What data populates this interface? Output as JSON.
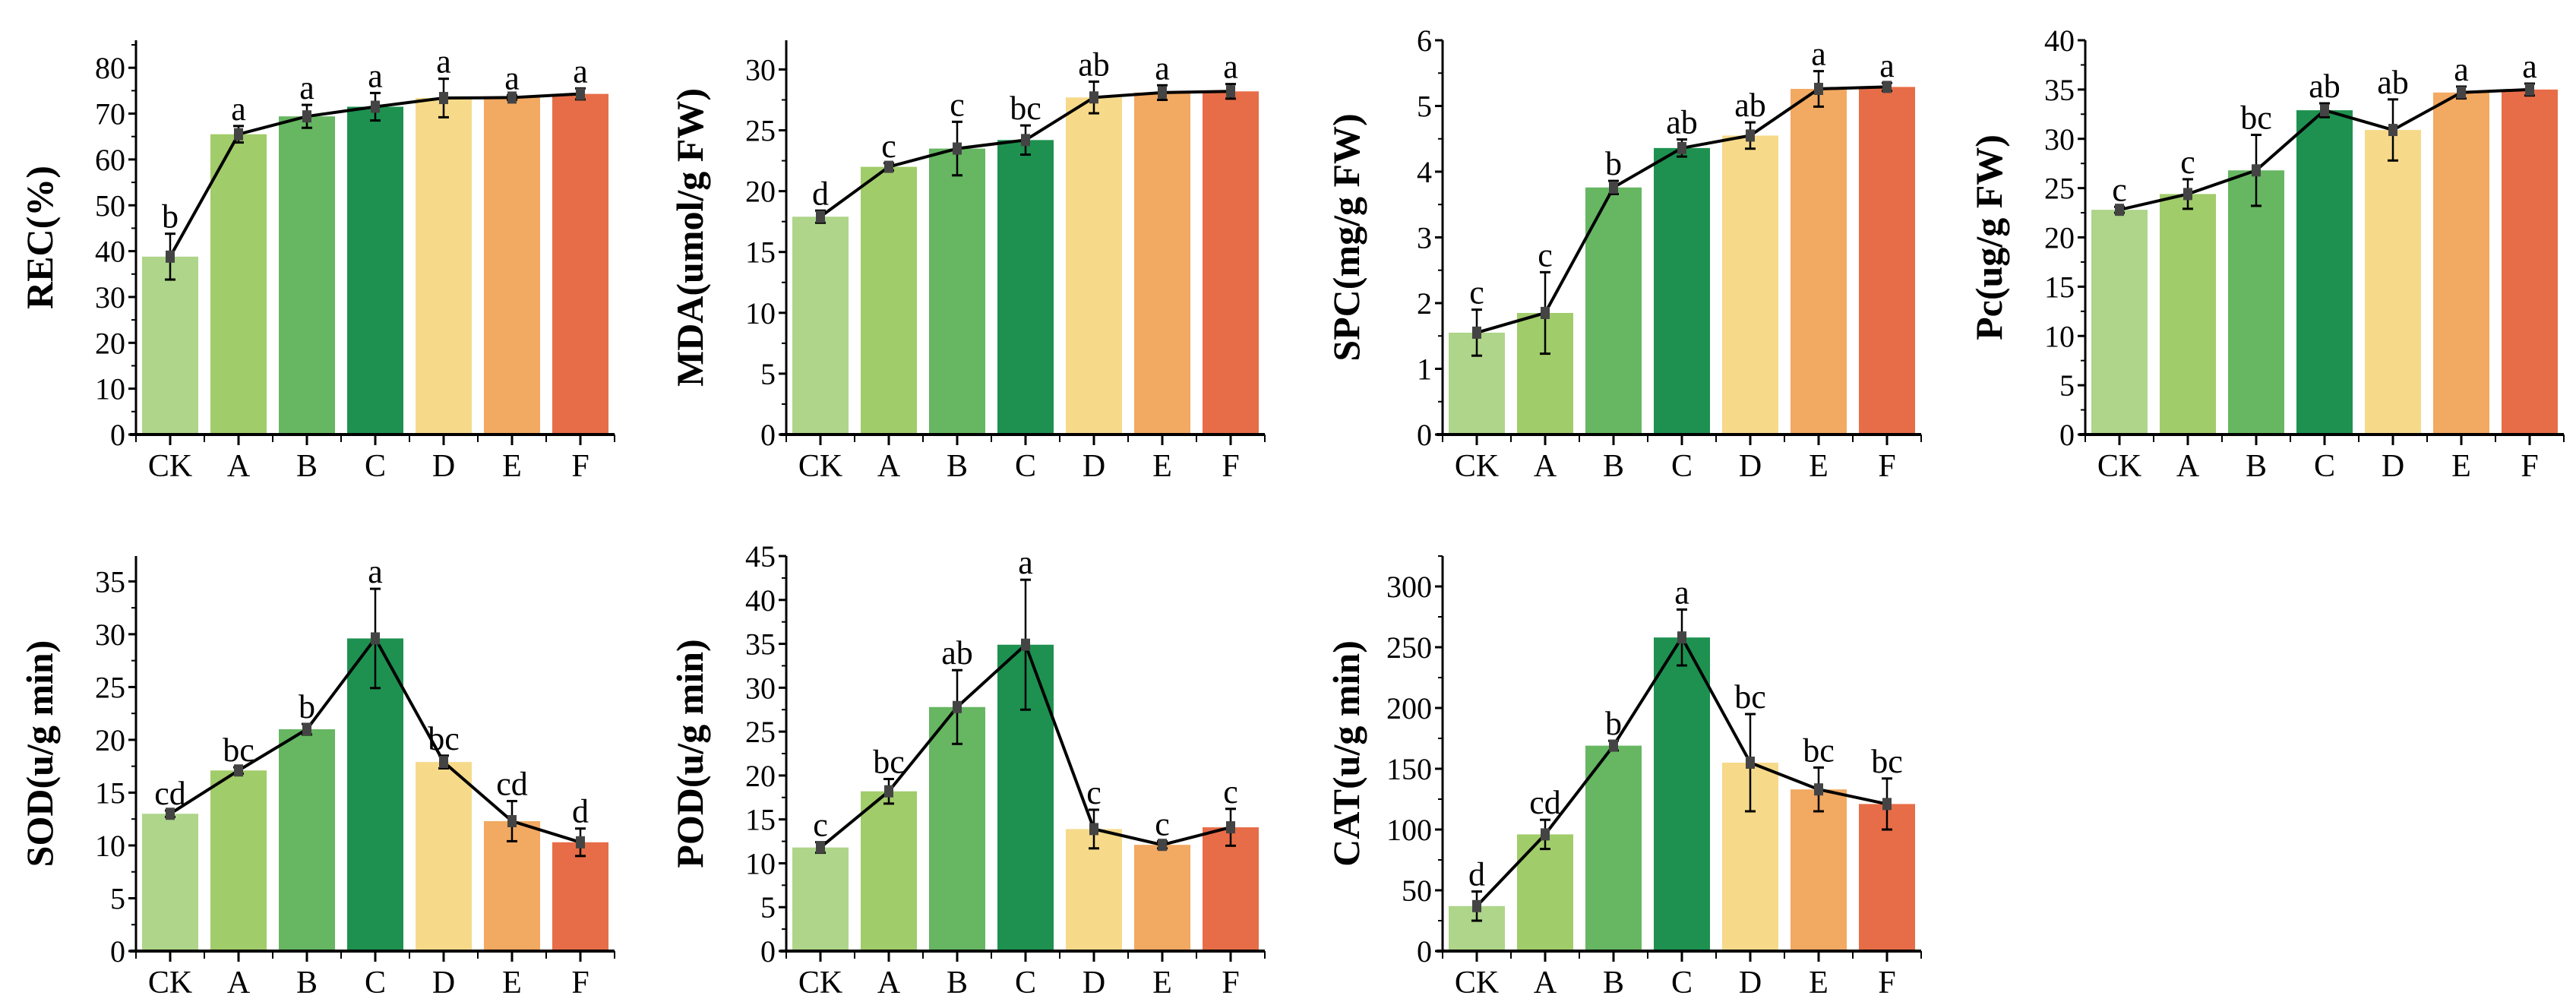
{
  "chart_data": [
    {
      "type": "bar",
      "ylabel": "REC(%)",
      "categories": [
        "CK",
        "A",
        "B",
        "C",
        "D",
        "E",
        "F"
      ],
      "values": [
        38.8,
        65.5,
        69.4,
        71.5,
        73.4,
        73.5,
        74.3
      ],
      "errors": [
        5.0,
        1.8,
        2.5,
        3.0,
        4.2,
        0.5,
        1.2
      ],
      "letters": [
        "b",
        "a",
        "a",
        "a",
        "a",
        "a",
        "a"
      ],
      "ylim": [
        0,
        86
      ],
      "yticks": [
        0,
        10,
        20,
        30,
        40,
        50,
        60,
        70,
        80
      ]
    },
    {
      "type": "bar",
      "ylabel": "MDA(umol/g FW)",
      "categories": [
        "CK",
        "A",
        "B",
        "C",
        "D",
        "E",
        "F"
      ],
      "values": [
        17.9,
        22.0,
        23.5,
        24.2,
        27.7,
        28.1,
        28.2
      ],
      "errors": [
        0.5,
        0.3,
        2.2,
        1.2,
        1.3,
        0.6,
        0.6
      ],
      "letters": [
        "d",
        "c",
        "c",
        "bc",
        "ab",
        "a",
        "a"
      ],
      "ylim": [
        0,
        32.4
      ],
      "yticks": [
        0,
        5,
        10,
        15,
        20,
        25,
        30
      ]
    },
    {
      "type": "bar",
      "ylabel": "SPC(mg/g FW)",
      "categories": [
        "CK",
        "A",
        "B",
        "C",
        "D",
        "E",
        "F"
      ],
      "values": [
        1.55,
        1.85,
        3.76,
        4.36,
        4.55,
        5.26,
        5.29
      ],
      "errors": [
        0.35,
        0.62,
        0.1,
        0.13,
        0.2,
        0.27,
        0.06
      ],
      "letters": [
        "c",
        "c",
        "b",
        "ab",
        "ab",
        "a",
        "a"
      ],
      "ylim": [
        0,
        6
      ],
      "yticks": [
        0,
        1,
        2,
        3,
        4,
        5,
        6
      ]
    },
    {
      "type": "bar",
      "ylabel": "Pc(ug/g FW)",
      "categories": [
        "CK",
        "A",
        "B",
        "C",
        "D",
        "E",
        "F"
      ],
      "values": [
        22.8,
        24.4,
        26.8,
        32.9,
        30.9,
        34.7,
        35.0
      ],
      "errors": [
        0.3,
        1.5,
        3.6,
        0.7,
        3.1,
        0.6,
        0.6
      ],
      "letters": [
        "c",
        "c",
        "bc",
        "ab",
        "ab",
        "a",
        "a"
      ],
      "ylim": [
        0,
        40
      ],
      "yticks": [
        0,
        5,
        10,
        15,
        20,
        25,
        30,
        35,
        40
      ]
    },
    {
      "type": "bar",
      "ylabel": "SOD(u/g min)",
      "categories": [
        "CK",
        "A",
        "B",
        "C",
        "D",
        "E",
        "F"
      ],
      "values": [
        13.0,
        17.1,
        21.0,
        29.6,
        17.9,
        12.3,
        10.3
      ],
      "errors": [
        0.3,
        0.3,
        0.5,
        4.7,
        0.6,
        1.9,
        1.3
      ],
      "letters": [
        "cd",
        "bc",
        "b",
        "a",
        "bc",
        "cd",
        "d"
      ],
      "ylim": [
        0,
        37.4
      ],
      "yticks": [
        0,
        5,
        10,
        15,
        20,
        25,
        30,
        35
      ]
    },
    {
      "type": "bar",
      "ylabel": "POD(u/g min)",
      "categories": [
        "CK",
        "A",
        "B",
        "C",
        "D",
        "E",
        "F"
      ],
      "values": [
        11.8,
        18.2,
        27.8,
        34.9,
        13.9,
        12.1,
        14.1
      ],
      "errors": [
        0.6,
        1.4,
        4.2,
        7.4,
        2.2,
        0.4,
        2.1
      ],
      "letters": [
        "c",
        "bc",
        "ab",
        "a",
        "c",
        "c",
        "c"
      ],
      "ylim": [
        0,
        45
      ],
      "yticks": [
        0,
        5,
        10,
        15,
        20,
        25,
        30,
        35,
        40,
        45
      ]
    },
    {
      "type": "bar",
      "ylabel": "CAT(u/g min)",
      "categories": [
        "CK",
        "A",
        "B",
        "C",
        "D",
        "E",
        "F"
      ],
      "values": [
        37,
        96,
        169,
        258,
        155,
        133,
        121
      ],
      "errors": [
        12,
        12,
        4,
        23,
        40,
        18,
        21
      ],
      "letters": [
        "d",
        "cd",
        "b",
        "a",
        "bc",
        "bc",
        "bc"
      ],
      "ylim": [
        0,
        325
      ],
      "yticks": [
        0,
        50,
        100,
        150,
        200,
        250,
        300
      ]
    }
  ],
  "colors": [
    "#aed58a",
    "#a1cc6a",
    "#66b662",
    "#1e9150",
    "#f6da8a",
    "#f2a962",
    "#e76d48"
  ]
}
